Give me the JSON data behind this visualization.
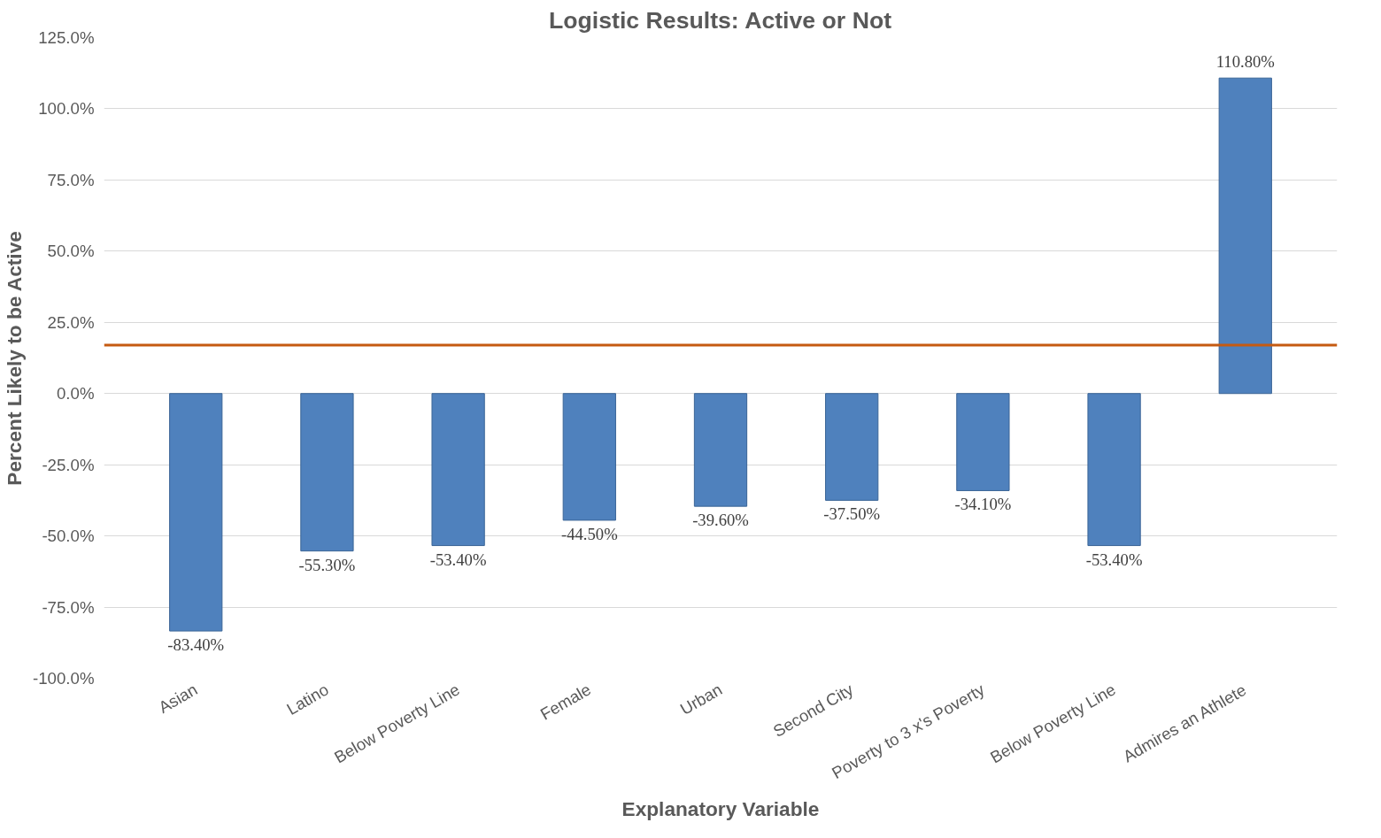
{
  "chart_data": {
    "type": "bar",
    "title": "Logistic Results: Active or Not",
    "xlabel": "Explanatory Variable",
    "ylabel": "Percent Likely to be Active",
    "categories": [
      "Asian",
      "Latino",
      "Below Poverty Line",
      "Female",
      "Urban",
      "Second City",
      "Poverty to 3 x's Poverty",
      "Below Poverty Line",
      "Admires an Athlete"
    ],
    "values": [
      -83.4,
      -55.3,
      -53.4,
      -44.5,
      -39.6,
      -37.5,
      -34.1,
      -53.4,
      110.8
    ],
    "value_labels": [
      "-83.40%",
      "-55.30%",
      "-53.40%",
      "-44.50%",
      "-39.60%",
      "-37.50%",
      "-34.10%",
      "-53.40%",
      "110.80%"
    ],
    "color": "#4f81bd",
    "ylim": [
      -100,
      125
    ],
    "yticks": [
      {
        "value": -100,
        "label": "-100.0%"
      },
      {
        "value": -75,
        "label": "-75.0%"
      },
      {
        "value": -50,
        "label": "-50.0%"
      },
      {
        "value": -25,
        "label": "-25.0%"
      },
      {
        "value": 0,
        "label": "0.0%"
      },
      {
        "value": 25,
        "label": "25.0%"
      },
      {
        "value": 50,
        "label": "50.0%"
      },
      {
        "value": 75,
        "label": "75.0%"
      },
      {
        "value": 100,
        "label": "100.0%"
      },
      {
        "value": 125,
        "label": "125.0%"
      }
    ],
    "grid": "y",
    "ref_lines": [
      {
        "axis": "y",
        "value": 17,
        "color": "#c55a11"
      }
    ]
  }
}
